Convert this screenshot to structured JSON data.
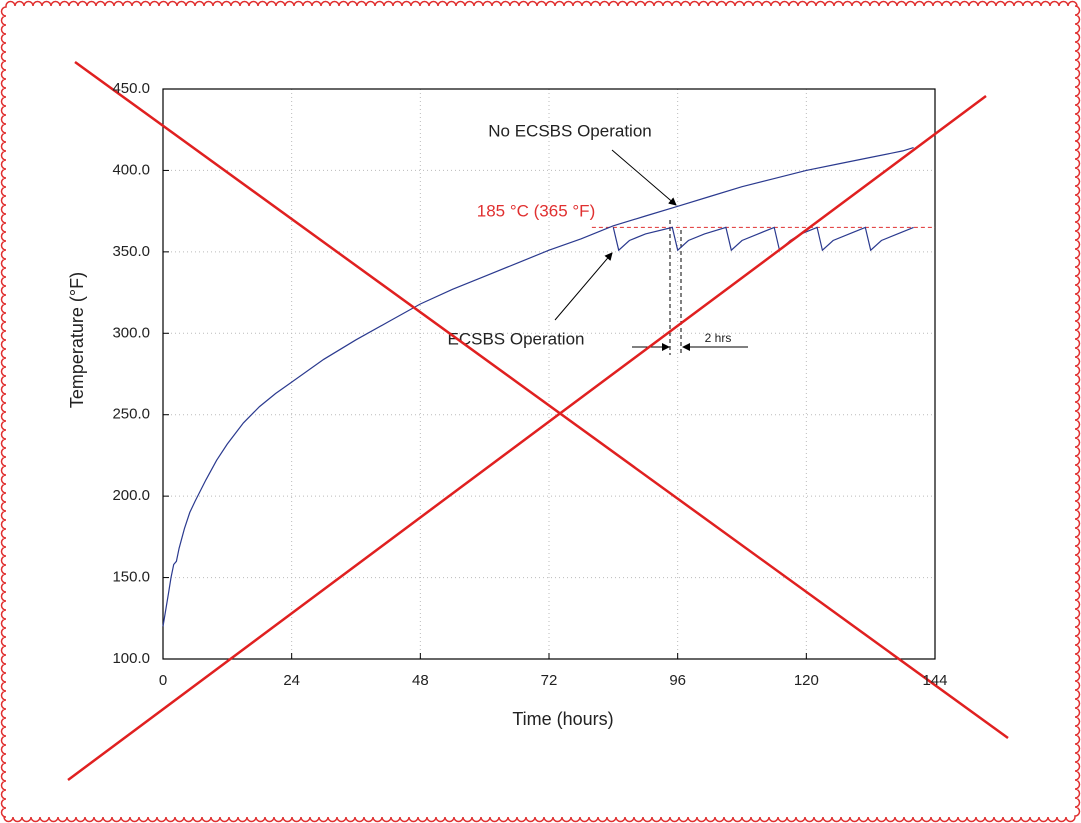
{
  "chart_data": {
    "type": "line",
    "x_label": "Time (hours)",
    "y_label": "Temperature (°F)",
    "xlim": [
      0,
      144
    ],
    "xticks": [
      0,
      24,
      48,
      72,
      96,
      120,
      144
    ],
    "ylim": [
      100,
      450
    ],
    "yticks": [
      {
        "value": 100,
        "label": "100.0"
      },
      {
        "value": 150,
        "label": "150.0"
      },
      {
        "value": 200,
        "label": "200.0"
      },
      {
        "value": 250,
        "label": "250.0"
      },
      {
        "value": 300,
        "label": "300.0"
      },
      {
        "value": 350,
        "label": "350.0"
      },
      {
        "value": 400,
        "label": "400.0"
      },
      {
        "value": 450,
        "label": "450.0"
      }
    ],
    "grid": true,
    "series": [
      {
        "name": "No ECSBS Operation",
        "color": "#2b3a8f",
        "x": [
          0,
          0.5,
          1,
          1.5,
          2,
          2.5,
          3,
          4,
          5,
          6,
          8,
          10,
          12,
          15,
          18,
          21,
          24,
          30,
          36,
          42,
          48,
          54,
          60,
          66,
          72,
          78,
          84,
          90,
          96,
          102,
          108,
          114,
          120,
          126,
          132,
          138,
          140
        ],
        "values": [
          120,
          130,
          140,
          150,
          158,
          160,
          168,
          180,
          190,
          197,
          210,
          222,
          232,
          245,
          255,
          263,
          270,
          284,
          296,
          307,
          318,
          327,
          335,
          343,
          351,
          358,
          366,
          372,
          378,
          384,
          390,
          395,
          400,
          404,
          408,
          412,
          414
        ]
      },
      {
        "name": "ECSBS Operation",
        "color": "#2b3a8f",
        "x": [
          84,
          85,
          87,
          90,
          95,
          96,
          98,
          101,
          105,
          106,
          108,
          111,
          114,
          115,
          117,
          119,
          122,
          123,
          125,
          128,
          131,
          132,
          134,
          137,
          140
        ],
        "values": [
          365,
          351,
          357,
          361,
          365,
          351,
          357,
          361,
          365,
          351,
          357,
          361,
          365,
          351,
          357,
          361,
          365,
          351,
          357,
          361,
          365,
          351,
          357,
          361,
          365
        ]
      }
    ],
    "reference_line": {
      "value": 365,
      "label": "185 °C (365 °F)",
      "color": "#e03030"
    },
    "annotation": "2 hrs"
  }
}
